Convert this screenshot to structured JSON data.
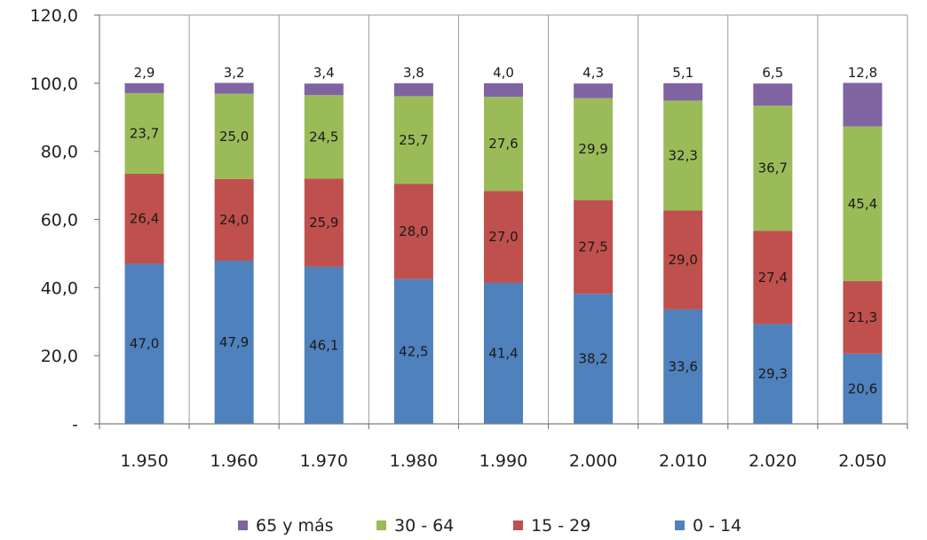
{
  "chart_data": {
    "type": "bar",
    "stacked": true,
    "categories": [
      "1.950",
      "1.960",
      "1.970",
      "1.980",
      "1.990",
      "2.000",
      "2.010",
      "2.020",
      "2.050"
    ],
    "series": [
      {
        "name": "0 - 14",
        "color": "#4F81BD",
        "values": [
          47.0,
          47.9,
          46.1,
          42.5,
          41.4,
          38.2,
          33.6,
          29.3,
          20.6
        ]
      },
      {
        "name": "15 - 29",
        "color": "#C0504D",
        "values": [
          26.4,
          24.0,
          25.9,
          28.0,
          27.0,
          27.5,
          29.0,
          27.4,
          21.3
        ]
      },
      {
        "name": "30 - 64",
        "color": "#9BBB59",
        "values": [
          23.7,
          25.0,
          24.5,
          25.7,
          27.6,
          29.9,
          32.3,
          36.7,
          45.4
        ]
      },
      {
        "name": "65 y más",
        "color": "#8064A2",
        "values": [
          2.9,
          3.2,
          3.4,
          3.8,
          4.0,
          4.3,
          5.1,
          6.5,
          12.8
        ]
      }
    ],
    "data_labels": [
      [
        "47,0",
        "47,9",
        "46,1",
        "42,5",
        "41,4",
        "38,2",
        "33,6",
        "29,3",
        "20,6"
      ],
      [
        "26,4",
        "24,0",
        "25,9",
        "28,0",
        "27,0",
        "27,5",
        "29,0",
        "27,4",
        "21,3"
      ],
      [
        "23,7",
        "25,0",
        "24,5",
        "25,7",
        "27,6",
        "29,9",
        "32,3",
        "36,7",
        "45,4"
      ],
      [
        "2,9",
        "3,2",
        "3,4",
        "3,8",
        "4,0",
        "4,3",
        "5,1",
        "6,5",
        "12,8"
      ]
    ],
    "yticks": [
      0,
      20,
      40,
      60,
      80,
      100,
      120
    ],
    "ytick_labels": [
      "-",
      "20,0",
      "40,0",
      "60,0",
      "80,0",
      "100,0",
      "120,0"
    ],
    "ylim": [
      0,
      120
    ],
    "grid": "vertical",
    "legend_position": "bottom",
    "legend_order": [
      "65 y más",
      "30 - 64",
      "15 - 29",
      "0 - 14"
    ],
    "title": "",
    "xlabel": "",
    "ylabel": ""
  }
}
